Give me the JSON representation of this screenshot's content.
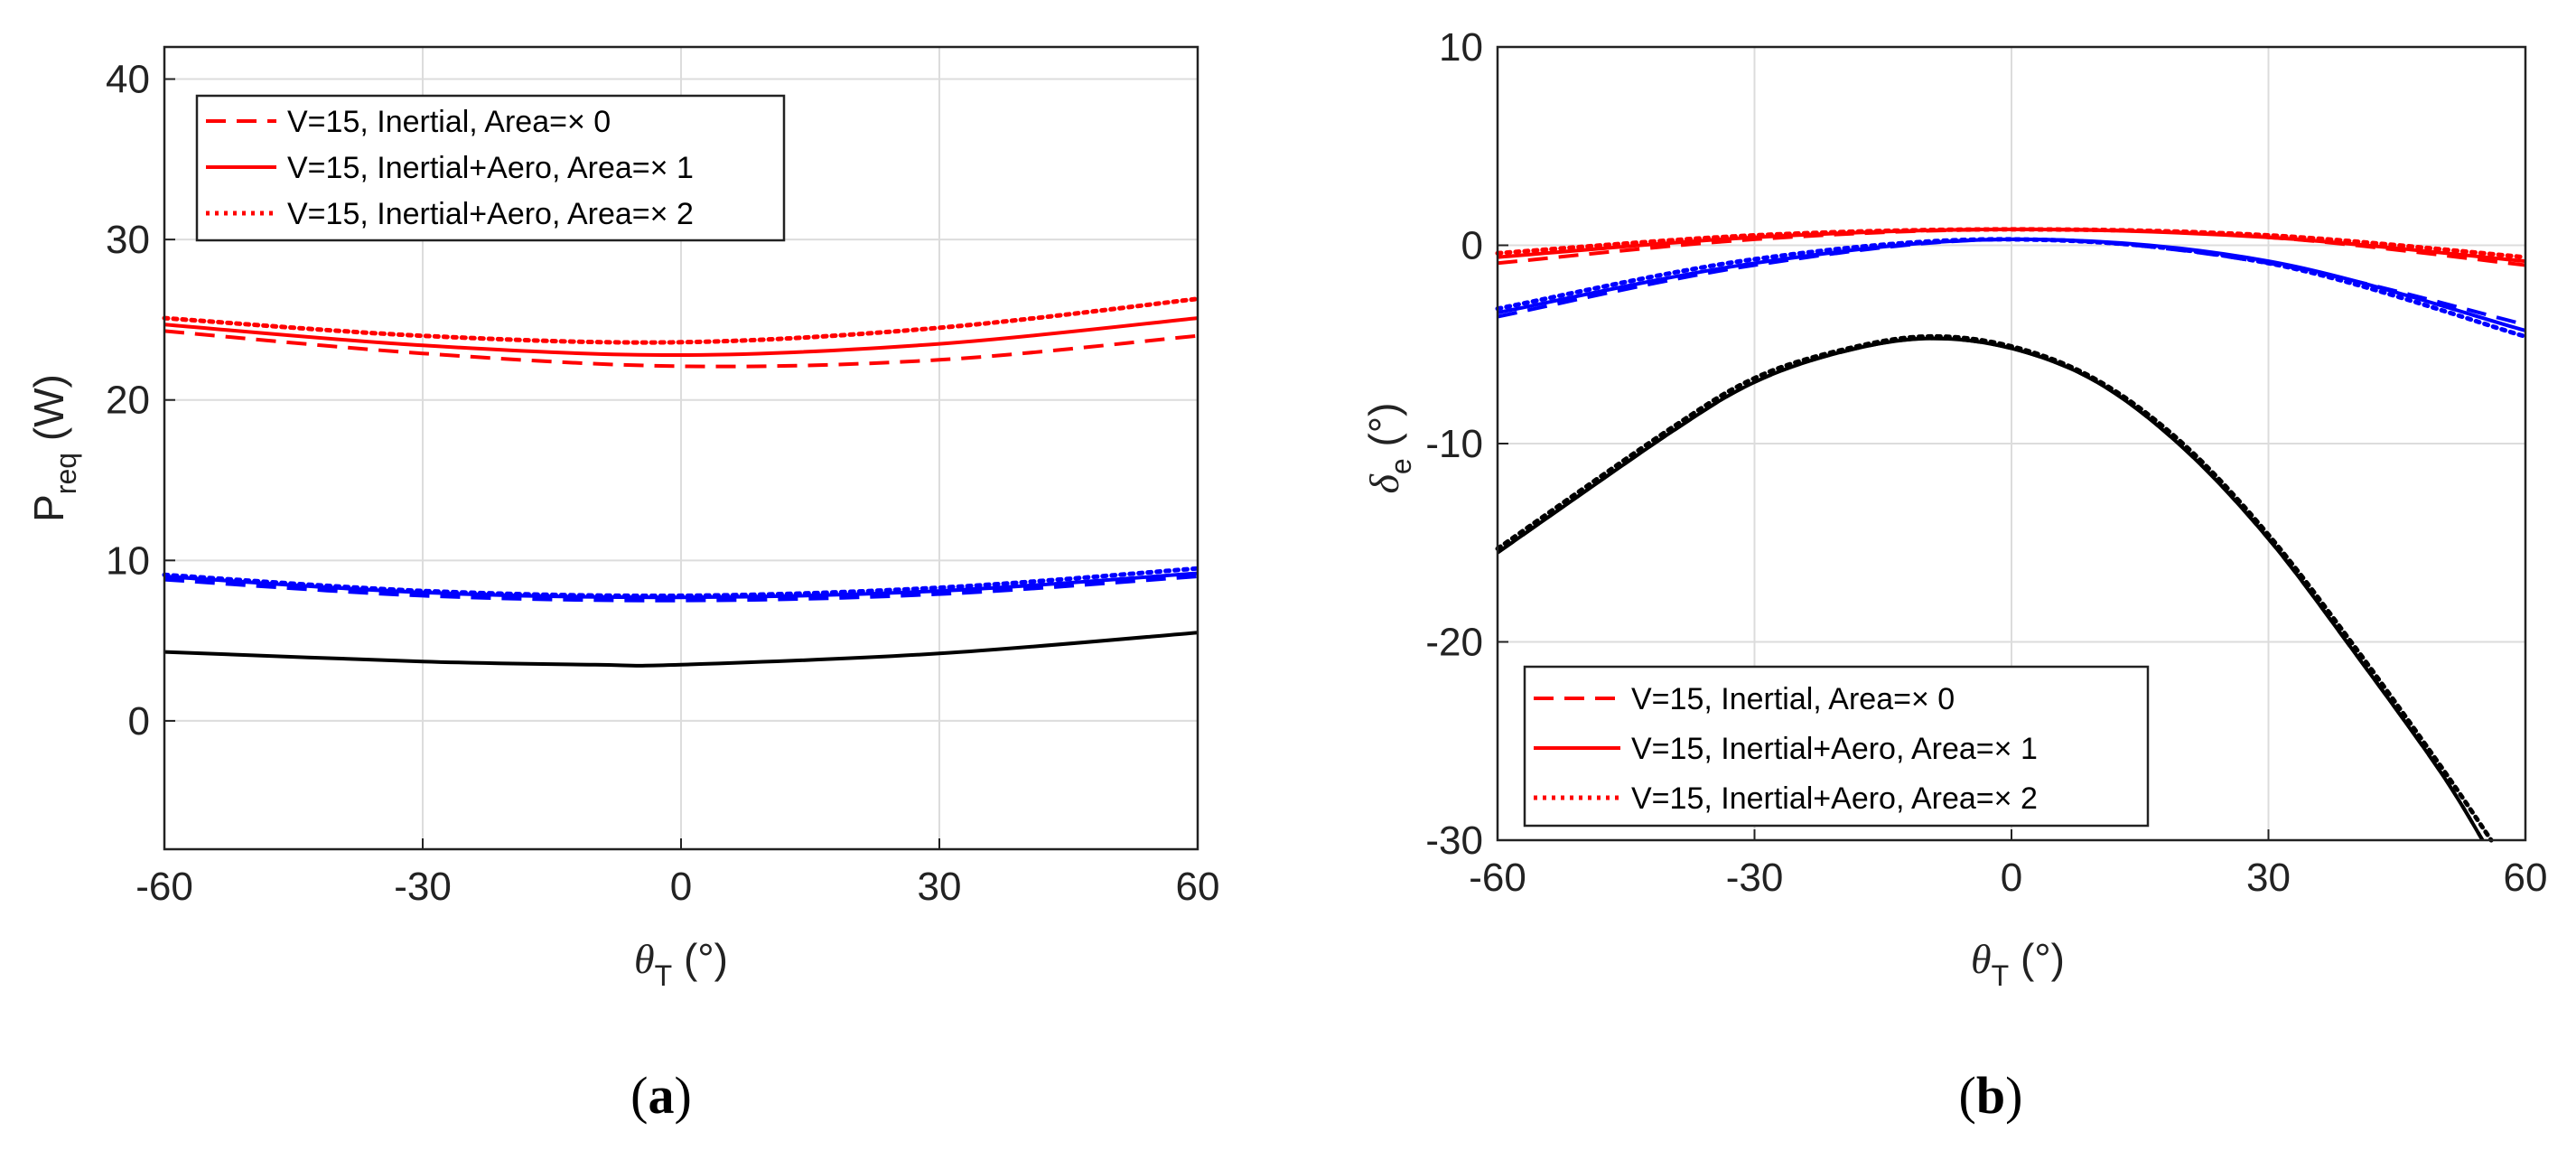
{
  "chart_data": [
    {
      "id": "a",
      "type": "line",
      "panel_label": "(a)",
      "panel_letter": "a",
      "ylabel_main": "P",
      "ylabel_sub": "req",
      "ylabel_unit": " (W)",
      "xlabel_sym": "θ",
      "xlabel_sub": "T",
      "xlabel_unit": " (°)",
      "xlim": [
        -60,
        60
      ],
      "ylim": [
        -8,
        42
      ],
      "xticks": [
        -60,
        -30,
        0,
        30,
        60
      ],
      "xtick_labels": [
        "-60",
        "-30",
        "0",
        "30",
        "60"
      ],
      "yticks": [
        0,
        10,
        20,
        30,
        40
      ],
      "ytick_labels": [
        "0",
        "10",
        "20",
        "30",
        "40"
      ],
      "grid": true,
      "legend_position": "top-left",
      "legend": [
        {
          "label": "V=15, Inertial, Area=× 0",
          "style": "dashed",
          "color": "#ff0000"
        },
        {
          "label": "V=15, Inertial+Aero, Area=× 1",
          "style": "solid",
          "color": "#ff0000"
        },
        {
          "label": "V=15, Inertial+Aero, Area=× 2",
          "style": "dotted",
          "color": "#ff0000"
        }
      ],
      "series": [
        {
          "name": "red-dashed",
          "color": "#ff0000",
          "style": "dashed",
          "x": [
            -60,
            -30,
            0,
            30,
            60
          ],
          "y": [
            24.3,
            22.9,
            22.1,
            22.5,
            24.0
          ]
        },
        {
          "name": "red-solid",
          "color": "#ff0000",
          "style": "solid",
          "x": [
            -60,
            -30,
            0,
            30,
            60
          ],
          "y": [
            24.7,
            23.4,
            22.8,
            23.5,
            25.1
          ]
        },
        {
          "name": "red-dotted",
          "color": "#ff0000",
          "style": "dotted",
          "x": [
            -60,
            -30,
            0,
            30,
            60
          ],
          "y": [
            25.1,
            24.0,
            23.6,
            24.5,
            26.3
          ]
        },
        {
          "name": "blue-dashed",
          "color": "#0000ff",
          "style": "dashed",
          "x": [
            -60,
            -30,
            0,
            30,
            60
          ],
          "y": [
            8.8,
            7.8,
            7.5,
            7.9,
            9.0
          ]
        },
        {
          "name": "blue-solid",
          "color": "#0000ff",
          "style": "solid",
          "x": [
            -60,
            -30,
            0,
            30,
            60
          ],
          "y": [
            9.0,
            8.0,
            7.7,
            8.1,
            9.2
          ]
        },
        {
          "name": "blue-dotted",
          "color": "#0000ff",
          "style": "dotted",
          "x": [
            -60,
            -30,
            0,
            30,
            60
          ],
          "y": [
            9.1,
            8.1,
            7.8,
            8.3,
            9.5
          ]
        },
        {
          "name": "black-solid",
          "color": "#000000",
          "style": "solid",
          "x": [
            -60,
            -30,
            -10,
            0,
            30,
            60
          ],
          "y": [
            4.3,
            3.7,
            3.5,
            3.5,
            4.2,
            5.5
          ]
        }
      ]
    },
    {
      "id": "b",
      "type": "line",
      "panel_label": "(b)",
      "panel_letter": "b",
      "ylabel_main": "δ",
      "ylabel_sub": "e",
      "ylabel_unit": " (°)",
      "xlabel_sym": "θ",
      "xlabel_sub": "T",
      "xlabel_unit": " (°)",
      "xlim": [
        -60,
        60
      ],
      "ylim": [
        -30,
        10
      ],
      "xticks": [
        -60,
        -30,
        0,
        30,
        60
      ],
      "xtick_labels": [
        "-60",
        "-30",
        "0",
        "30",
        "60"
      ],
      "yticks": [
        -30,
        -20,
        -10,
        0,
        10
      ],
      "ytick_labels": [
        "-30",
        "-20",
        "-10",
        "0",
        "10"
      ],
      "grid": true,
      "legend_position": "bottom-left",
      "legend": [
        {
          "label": "V=15, Inertial, Area=× 0",
          "style": "dashed",
          "color": "#ff0000"
        },
        {
          "label": "V=15, Inertial+Aero, Area=× 1",
          "style": "solid",
          "color": "#ff0000"
        },
        {
          "label": "V=15, Inertial+Aero, Area=× 2",
          "style": "dotted",
          "color": "#ff0000"
        }
      ],
      "series": [
        {
          "name": "red-dashed",
          "color": "#ff0000",
          "style": "dashed",
          "x": [
            -60,
            -30,
            0,
            30,
            60
          ],
          "y": [
            -0.9,
            0.3,
            0.8,
            0.4,
            -1.0
          ]
        },
        {
          "name": "red-solid",
          "color": "#ff0000",
          "style": "solid",
          "x": [
            -60,
            -30,
            0,
            30,
            60
          ],
          "y": [
            -0.6,
            0.4,
            0.8,
            0.4,
            -0.8
          ]
        },
        {
          "name": "red-dotted",
          "color": "#ff0000",
          "style": "dotted",
          "x": [
            -60,
            -30,
            0,
            30,
            60
          ],
          "y": [
            -0.4,
            0.5,
            0.8,
            0.5,
            -0.6
          ]
        },
        {
          "name": "blue-dashed",
          "color": "#0000ff",
          "style": "dashed",
          "x": [
            -60,
            -30,
            0,
            30,
            60
          ],
          "y": [
            -3.6,
            -1.0,
            0.3,
            -0.9,
            -4.0
          ]
        },
        {
          "name": "blue-solid",
          "color": "#0000ff",
          "style": "solid",
          "x": [
            -60,
            -30,
            0,
            30,
            60
          ],
          "y": [
            -3.4,
            -0.9,
            0.3,
            -0.8,
            -4.3
          ]
        },
        {
          "name": "blue-dotted",
          "color": "#0000ff",
          "style": "dotted",
          "x": [
            -60,
            -30,
            0,
            30,
            60
          ],
          "y": [
            -3.2,
            -0.7,
            0.3,
            -0.9,
            -4.6
          ]
        },
        {
          "name": "black-dashed",
          "color": "#000000",
          "style": "dashed",
          "x": [
            -60,
            -40,
            -30,
            -20,
            -10,
            0,
            10,
            20,
            30,
            40,
            50,
            55
          ],
          "y": [
            -15.5,
            -9.5,
            -6.9,
            -5.4,
            -4.7,
            -5.2,
            -6.9,
            -10.2,
            -14.8,
            -20.5,
            -26.5,
            -30.0
          ]
        },
        {
          "name": "black-solid",
          "color": "#000000",
          "style": "solid",
          "x": [
            -60,
            -40,
            -30,
            -20,
            -10,
            0,
            10,
            20,
            30,
            40,
            50,
            55
          ],
          "y": [
            -15.5,
            -9.5,
            -6.9,
            -5.4,
            -4.7,
            -5.2,
            -6.9,
            -10.2,
            -14.8,
            -20.5,
            -26.5,
            -30.0
          ]
        },
        {
          "name": "black-dotted",
          "color": "#000000",
          "style": "dotted",
          "x": [
            -60,
            -40,
            -30,
            -20,
            -10,
            0,
            10,
            20,
            30,
            40,
            50,
            56
          ],
          "y": [
            -15.3,
            -9.3,
            -6.7,
            -5.3,
            -4.6,
            -5.1,
            -6.8,
            -10.0,
            -14.6,
            -20.2,
            -26.2,
            -30.0
          ]
        }
      ]
    }
  ]
}
